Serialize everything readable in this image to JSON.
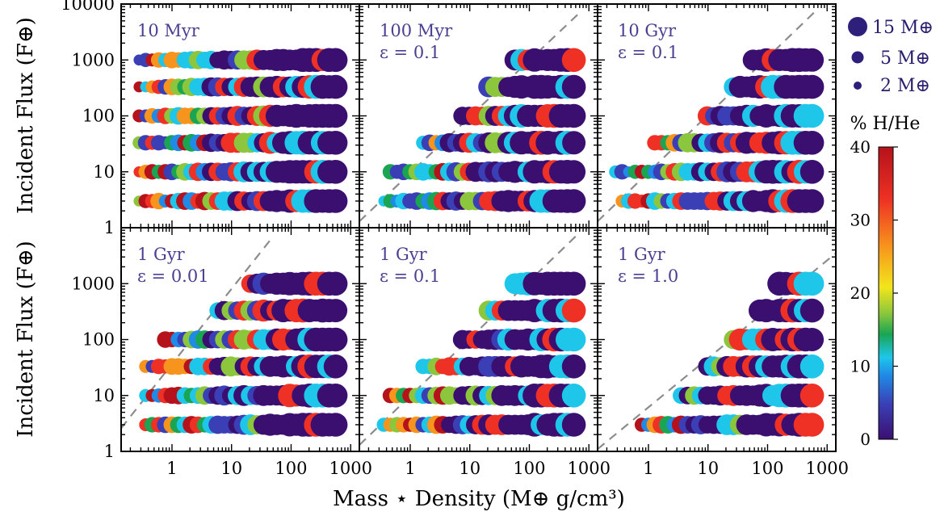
{
  "chart_data": {
    "type": "scatter",
    "xlabel": "Mass ⋆ Density (M⊕ g/cm³)",
    "ylabel": "Incident Flux (F⊕)",
    "x_scale": "log",
    "y_scale": "log",
    "xlim": [
      0.14,
      1400
    ],
    "ylim": [
      1,
      10000
    ],
    "x_ticks": [
      1,
      10,
      100,
      1000
    ],
    "x_tick_labels": [
      "1",
      "10",
      "100",
      "1000"
    ],
    "y_ticks": [
      1,
      10,
      100,
      1000,
      10000
    ],
    "y_tick_labels": [
      "1",
      "10",
      "100",
      "1000",
      "10000"
    ],
    "flux_levels": [
      3,
      10,
      33,
      100,
      330,
      1000
    ],
    "mass_grid": [
      1,
      2,
      3,
      4,
      5,
      6,
      7,
      8,
      9,
      10,
      12,
      14,
      15
    ],
    "colorbar": {
      "label": "% H/He",
      "min": 0,
      "max": 40,
      "ticks": [
        0,
        10,
        20,
        30,
        40
      ],
      "tick_labels": [
        "0",
        "10",
        "20",
        "30",
        "40"
      ],
      "colormap": "rainbow",
      "colors": [
        "#3b0f70",
        "#3a3fb6",
        "#1f8be6",
        "#1ec6ea",
        "#1aa552",
        "#8bc63d",
        "#f2e61b",
        "#f7941d",
        "#ee3124",
        "#b5121b"
      ]
    },
    "size_legend": {
      "placement": "top-right",
      "entries": [
        {
          "mass": 15,
          "label_num": "15",
          "label_unit": "M⊕"
        },
        {
          "mass": 5,
          "label_num": "5",
          "label_unit": "M⊕"
        },
        {
          "mass": 2,
          "label_num": "2",
          "label_unit": "M⊕"
        }
      ]
    },
    "panels": [
      {
        "title_line1": "10 Myr",
        "title_line2": "",
        "epsilon": null,
        "cutoff_min_density": [
          0.2,
          0.2,
          0.2,
          0.2,
          0.2,
          0.2
        ],
        "dashed_line": null
      },
      {
        "title_line1": "100 Myr",
        "title_line2": "ε = 0.1",
        "epsilon": 0.1,
        "cutoff_min_density": [
          0.35,
          0.45,
          1.4,
          7,
          20,
          50
        ],
        "dashed_line": {
          "x": [
            0.14,
            700
          ],
          "y": [
            1.3,
            7000
          ]
        }
      },
      {
        "title_line1": "10 Gyr",
        "title_line2": "ε = 0.1",
        "epsilon": 0.1,
        "cutoff_min_density": [
          0.35,
          0.25,
          1.2,
          8,
          25,
          45
        ],
        "dashed_line": {
          "x": [
            0.14,
            600
          ],
          "y": [
            1.3,
            7000
          ]
        }
      },
      {
        "title_line1": "1 Gyr",
        "title_line2": "ε = 0.01",
        "epsilon": 0.01,
        "cutoff_min_density": [
          0.3,
          0.3,
          0.3,
          0.7,
          5,
          20
        ],
        "dashed_line": {
          "x": [
            0.14,
            50
          ],
          "y": [
            2.6,
            7000
          ]
        }
      },
      {
        "title_line1": "1 Gyr",
        "title_line2": "ε = 0.1",
        "epsilon": 0.1,
        "cutoff_min_density": [
          0.35,
          0.4,
          1.3,
          7,
          20,
          45
        ],
        "dashed_line": {
          "x": [
            0.14,
            600
          ],
          "y": [
            1.3,
            7000
          ]
        }
      },
      {
        "title_line1": "1 Gyr",
        "title_line2": "ε = 1.0",
        "epsilon": 1.0,
        "cutoff_min_density": [
          0.7,
          3,
          8,
          25,
          60,
          150
        ],
        "dashed_line": {
          "x": [
            0.14,
            1400
          ],
          "y": [
            1.1,
            3500
          ]
        }
      }
    ]
  }
}
